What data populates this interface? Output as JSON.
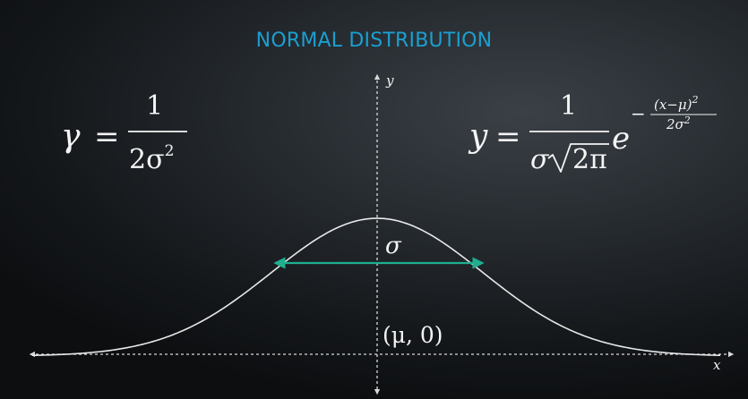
{
  "title": "NORMAL DISTRIBUTION",
  "colors": {
    "title": "#1b9fd0",
    "curve": "#e8e8e8",
    "sigma_arrow": "#1fae8f",
    "axes": "#d8d8d8"
  },
  "axes": {
    "x_label": "x",
    "y_label": "y"
  },
  "gamma_formula": {
    "lhs": "γ",
    "equals": "=",
    "numerator": "1",
    "denominator": "2σ",
    "denominator_exp": "2"
  },
  "pdf_formula": {
    "lhs": "y",
    "equals": "=",
    "numerator": "1",
    "denominator_sigma": "σ",
    "radicand": "2π",
    "base": "e",
    "exp_sign": "−",
    "exp_numerator": "(x−μ)",
    "exp_numerator_exp": "2",
    "exp_denominator": "2σ",
    "exp_denominator_exp": "2"
  },
  "annotations": {
    "sigma": "σ",
    "mean_point": "(μ, 0)"
  }
}
